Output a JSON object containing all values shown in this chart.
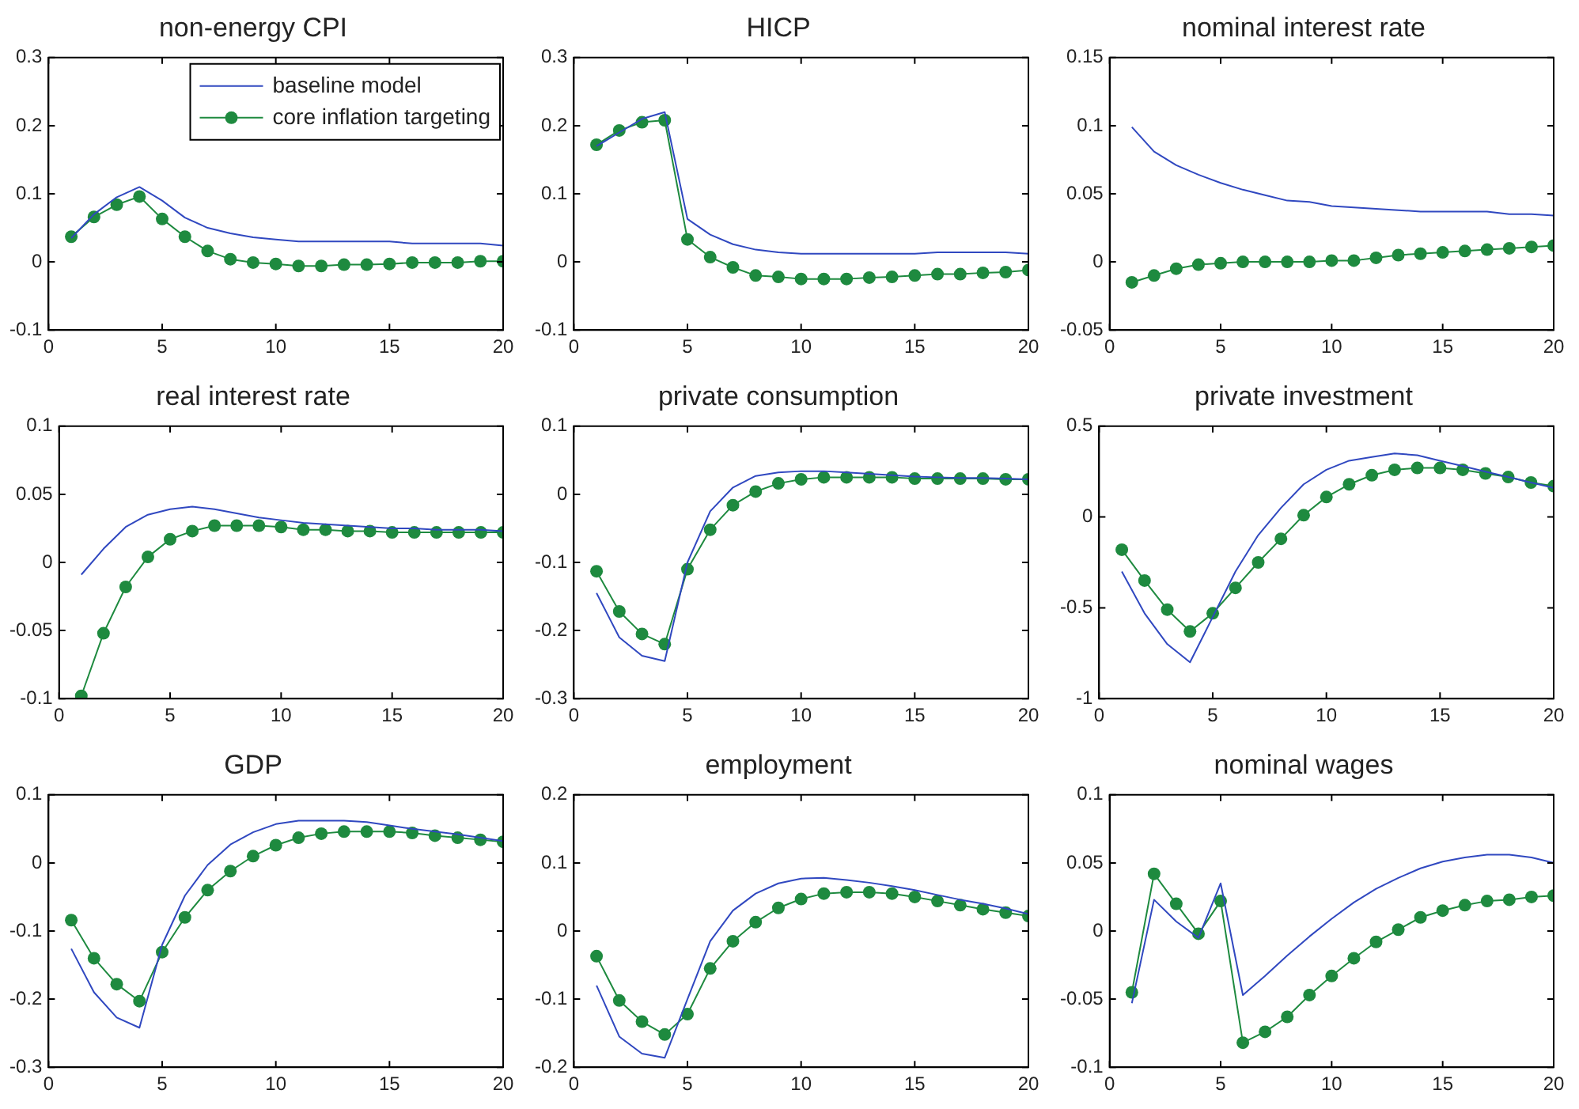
{
  "chart_data": [
    {
      "type": "line",
      "title": "non-energy CPI",
      "x": [
        1,
        2,
        3,
        4,
        5,
        6,
        7,
        8,
        9,
        10,
        11,
        12,
        13,
        14,
        15,
        16,
        17,
        18,
        19,
        20
      ],
      "xlim": [
        0,
        20
      ],
      "xticks": [
        0,
        5,
        10,
        15,
        20
      ],
      "ylim": [
        -0.1,
        0.3
      ],
      "yticks": [
        -0.1,
        0,
        0.1,
        0.2,
        0.3
      ],
      "grid": false,
      "legend": "top right",
      "series": [
        {
          "name": "baseline model",
          "color": "#3048c0",
          "marker": "none",
          "values": [
            0.035,
            0.07,
            0.095,
            0.11,
            0.09,
            0.065,
            0.05,
            0.042,
            0.036,
            0.033,
            0.03,
            0.03,
            0.03,
            0.03,
            0.03,
            0.027,
            0.027,
            0.027,
            0.027,
            0.024
          ]
        },
        {
          "name": "core inflation targeting",
          "color": "#1e8a3f",
          "marker": "circle",
          "values": [
            0.037,
            0.066,
            0.084,
            0.096,
            0.063,
            0.037,
            0.016,
            0.004,
            -0.001,
            -0.003,
            -0.006,
            -0.006,
            -0.004,
            -0.004,
            -0.003,
            -0.001,
            -0.001,
            -0.001,
            0.001,
            0.001
          ]
        }
      ]
    },
    {
      "type": "line",
      "title": "HICP",
      "x": [
        1,
        2,
        3,
        4,
        5,
        6,
        7,
        8,
        9,
        10,
        11,
        12,
        13,
        14,
        15,
        16,
        17,
        18,
        19,
        20
      ],
      "xlim": [
        0,
        20
      ],
      "xticks": [
        0,
        5,
        10,
        15,
        20
      ],
      "ylim": [
        -0.1,
        0.3
      ],
      "yticks": [
        -0.1,
        0,
        0.1,
        0.2,
        0.3
      ],
      "grid": false,
      "legend": false,
      "series": [
        {
          "color": "#3048c0",
          "marker": "none",
          "values": [
            0.17,
            0.19,
            0.21,
            0.22,
            0.063,
            0.04,
            0.026,
            0.018,
            0.014,
            0.012,
            0.012,
            0.012,
            0.012,
            0.012,
            0.012,
            0.014,
            0.014,
            0.014,
            0.014,
            0.012
          ]
        },
        {
          "color": "#1e8a3f",
          "marker": "circle",
          "values": [
            0.172,
            0.193,
            0.205,
            0.208,
            0.033,
            0.007,
            -0.008,
            -0.02,
            -0.022,
            -0.025,
            -0.025,
            -0.025,
            -0.023,
            -0.022,
            -0.02,
            -0.018,
            -0.018,
            -0.016,
            -0.015,
            -0.012
          ]
        }
      ]
    },
    {
      "type": "line",
      "title": "nominal interest rate",
      "x": [
        1,
        2,
        3,
        4,
        5,
        6,
        7,
        8,
        9,
        10,
        11,
        12,
        13,
        14,
        15,
        16,
        17,
        18,
        19,
        20
      ],
      "xlim": [
        0,
        20
      ],
      "xticks": [
        0,
        5,
        10,
        15,
        20
      ],
      "ylim": [
        -0.05,
        0.15
      ],
      "yticks": [
        -0.05,
        0,
        0.05,
        0.1,
        0.15
      ],
      "grid": false,
      "legend": false,
      "series": [
        {
          "color": "#3048c0",
          "marker": "none",
          "values": [
            0.099,
            0.081,
            0.071,
            0.064,
            0.058,
            0.053,
            0.049,
            0.045,
            0.044,
            0.041,
            0.04,
            0.039,
            0.038,
            0.037,
            0.037,
            0.037,
            0.037,
            0.035,
            0.035,
            0.034
          ]
        },
        {
          "color": "#1e8a3f",
          "marker": "circle",
          "values": [
            -0.015,
            -0.01,
            -0.005,
            -0.002,
            -0.001,
            0,
            0,
            0,
            0,
            0.001,
            0.001,
            0.003,
            0.005,
            0.006,
            0.007,
            0.008,
            0.009,
            0.01,
            0.011,
            0.012
          ]
        }
      ]
    },
    {
      "type": "line",
      "title": "real interest rate",
      "x": [
        1,
        2,
        3,
        4,
        5,
        6,
        7,
        8,
        9,
        10,
        11,
        12,
        13,
        14,
        15,
        16,
        17,
        18,
        19,
        20
      ],
      "xlim": [
        0,
        20
      ],
      "xticks": [
        0,
        5,
        10,
        15,
        20
      ],
      "ylim": [
        -0.1,
        0.1
      ],
      "yticks": [
        -0.1,
        -0.05,
        0,
        0.05,
        0.1
      ],
      "grid": false,
      "legend": false,
      "series": [
        {
          "color": "#3048c0",
          "marker": "none",
          "values": [
            -0.009,
            0.01,
            0.026,
            0.035,
            0.039,
            0.041,
            0.039,
            0.036,
            0.033,
            0.031,
            0.029,
            0.028,
            0.027,
            0.026,
            0.025,
            0.025,
            0.024,
            0.024,
            0.024,
            0.023
          ]
        },
        {
          "color": "#1e8a3f",
          "marker": "circle",
          "values": [
            -0.098,
            -0.052,
            -0.018,
            0.004,
            0.017,
            0.023,
            0.027,
            0.027,
            0.027,
            0.026,
            0.024,
            0.024,
            0.023,
            0.023,
            0.022,
            0.022,
            0.022,
            0.022,
            0.022,
            0.022
          ]
        }
      ]
    },
    {
      "type": "line",
      "title": "private consumption",
      "x": [
        1,
        2,
        3,
        4,
        5,
        6,
        7,
        8,
        9,
        10,
        11,
        12,
        13,
        14,
        15,
        16,
        17,
        18,
        19,
        20
      ],
      "xlim": [
        0,
        20
      ],
      "xticks": [
        0,
        5,
        10,
        15,
        20
      ],
      "ylim": [
        -0.3,
        0.1
      ],
      "yticks": [
        -0.3,
        -0.2,
        -0.1,
        0,
        0.1
      ],
      "grid": false,
      "legend": false,
      "series": [
        {
          "color": "#3048c0",
          "marker": "none",
          "values": [
            -0.145,
            -0.21,
            -0.237,
            -0.245,
            -0.1,
            -0.025,
            0.01,
            0.027,
            0.032,
            0.034,
            0.034,
            0.032,
            0.03,
            0.028,
            0.026,
            0.025,
            0.024,
            0.024,
            0.023,
            0.022
          ]
        },
        {
          "color": "#1e8a3f",
          "marker": "circle",
          "values": [
            -0.113,
            -0.172,
            -0.205,
            -0.22,
            -0.11,
            -0.052,
            -0.016,
            0.004,
            0.016,
            0.022,
            0.025,
            0.025,
            0.025,
            0.025,
            0.023,
            0.023,
            0.023,
            0.023,
            0.022,
            0.022
          ]
        }
      ]
    },
    {
      "type": "line",
      "title": "private investment",
      "x": [
        1,
        2,
        3,
        4,
        5,
        6,
        7,
        8,
        9,
        10,
        11,
        12,
        13,
        14,
        15,
        16,
        17,
        18,
        19,
        20
      ],
      "xlim": [
        0,
        20
      ],
      "xticks": [
        0,
        5,
        10,
        15,
        20
      ],
      "ylim": [
        -1,
        0.5
      ],
      "yticks": [
        -1,
        -0.5,
        0,
        0.5
      ],
      "grid": false,
      "legend": false,
      "series": [
        {
          "color": "#3048c0",
          "marker": "none",
          "values": [
            -0.3,
            -0.53,
            -0.7,
            -0.8,
            -0.55,
            -0.3,
            -0.1,
            0.05,
            0.18,
            0.26,
            0.31,
            0.33,
            0.35,
            0.34,
            0.31,
            0.28,
            0.25,
            0.22,
            0.19,
            0.16
          ]
        },
        {
          "color": "#1e8a3f",
          "marker": "circle",
          "values": [
            -0.18,
            -0.35,
            -0.51,
            -0.63,
            -0.53,
            -0.39,
            -0.25,
            -0.12,
            0.01,
            0.11,
            0.18,
            0.23,
            0.26,
            0.27,
            0.27,
            0.26,
            0.24,
            0.22,
            0.19,
            0.17
          ]
        }
      ]
    },
    {
      "type": "line",
      "title": "GDP",
      "x": [
        1,
        2,
        3,
        4,
        5,
        6,
        7,
        8,
        9,
        10,
        11,
        12,
        13,
        14,
        15,
        16,
        17,
        18,
        19,
        20
      ],
      "xlim": [
        0,
        20
      ],
      "xticks": [
        0,
        5,
        10,
        15,
        20
      ],
      "ylim": [
        -0.3,
        0.1
      ],
      "yticks": [
        -0.3,
        -0.2,
        -0.1,
        0,
        0.1
      ],
      "grid": false,
      "legend": false,
      "series": [
        {
          "color": "#3048c0",
          "marker": "none",
          "values": [
            -0.126,
            -0.19,
            -0.227,
            -0.242,
            -0.12,
            -0.048,
            -0.003,
            0.027,
            0.045,
            0.057,
            0.062,
            0.062,
            0.062,
            0.06,
            0.055,
            0.05,
            0.046,
            0.042,
            0.037,
            0.032
          ]
        },
        {
          "color": "#1e8a3f",
          "marker": "circle",
          "values": [
            -0.084,
            -0.14,
            -0.178,
            -0.203,
            -0.131,
            -0.08,
            -0.04,
            -0.012,
            0.01,
            0.026,
            0.037,
            0.043,
            0.046,
            0.046,
            0.046,
            0.044,
            0.04,
            0.037,
            0.034,
            0.031
          ]
        }
      ]
    },
    {
      "type": "line",
      "title": "employment",
      "x": [
        1,
        2,
        3,
        4,
        5,
        6,
        7,
        8,
        9,
        10,
        11,
        12,
        13,
        14,
        15,
        16,
        17,
        18,
        19,
        20
      ],
      "xlim": [
        0,
        20
      ],
      "xticks": [
        0,
        5,
        10,
        15,
        20
      ],
      "ylim": [
        -0.2,
        0.2
      ],
      "yticks": [
        -0.2,
        -0.1,
        0,
        0.1,
        0.2
      ],
      "grid": false,
      "legend": false,
      "series": [
        {
          "color": "#3048c0",
          "marker": "none",
          "values": [
            -0.08,
            -0.155,
            -0.18,
            -0.186,
            -0.1,
            -0.015,
            0.03,
            0.055,
            0.07,
            0.077,
            0.078,
            0.075,
            0.071,
            0.066,
            0.06,
            0.053,
            0.046,
            0.04,
            0.033,
            0.025
          ]
        },
        {
          "color": "#1e8a3f",
          "marker": "circle",
          "values": [
            -0.037,
            -0.102,
            -0.133,
            -0.152,
            -0.122,
            -0.055,
            -0.015,
            0.013,
            0.034,
            0.047,
            0.055,
            0.057,
            0.057,
            0.055,
            0.05,
            0.044,
            0.038,
            0.032,
            0.027,
            0.022
          ]
        }
      ]
    },
    {
      "type": "line",
      "title": "nominal wages",
      "x": [
        1,
        2,
        3,
        4,
        5,
        6,
        7,
        8,
        9,
        10,
        11,
        12,
        13,
        14,
        15,
        16,
        17,
        18,
        19,
        20
      ],
      "xlim": [
        0,
        20
      ],
      "xticks": [
        0,
        5,
        10,
        15,
        20
      ],
      "ylim": [
        -0.1,
        0.1
      ],
      "yticks": [
        -0.1,
        -0.05,
        0,
        0.05,
        0.1
      ],
      "grid": false,
      "legend": false,
      "series": [
        {
          "color": "#3048c0",
          "marker": "none",
          "values": [
            -0.053,
            0.023,
            0.007,
            -0.005,
            0.035,
            -0.047,
            -0.033,
            -0.018,
            -0.004,
            0.009,
            0.021,
            0.031,
            0.039,
            0.046,
            0.051,
            0.054,
            0.056,
            0.056,
            0.054,
            0.05
          ]
        },
        {
          "color": "#1e8a3f",
          "marker": "circle",
          "values": [
            -0.045,
            0.042,
            0.02,
            -0.002,
            0.022,
            -0.082,
            -0.074,
            -0.063,
            -0.047,
            -0.033,
            -0.02,
            -0.008,
            0.001,
            0.01,
            0.015,
            0.019,
            0.022,
            0.023,
            0.025,
            0.026
          ]
        }
      ]
    }
  ]
}
